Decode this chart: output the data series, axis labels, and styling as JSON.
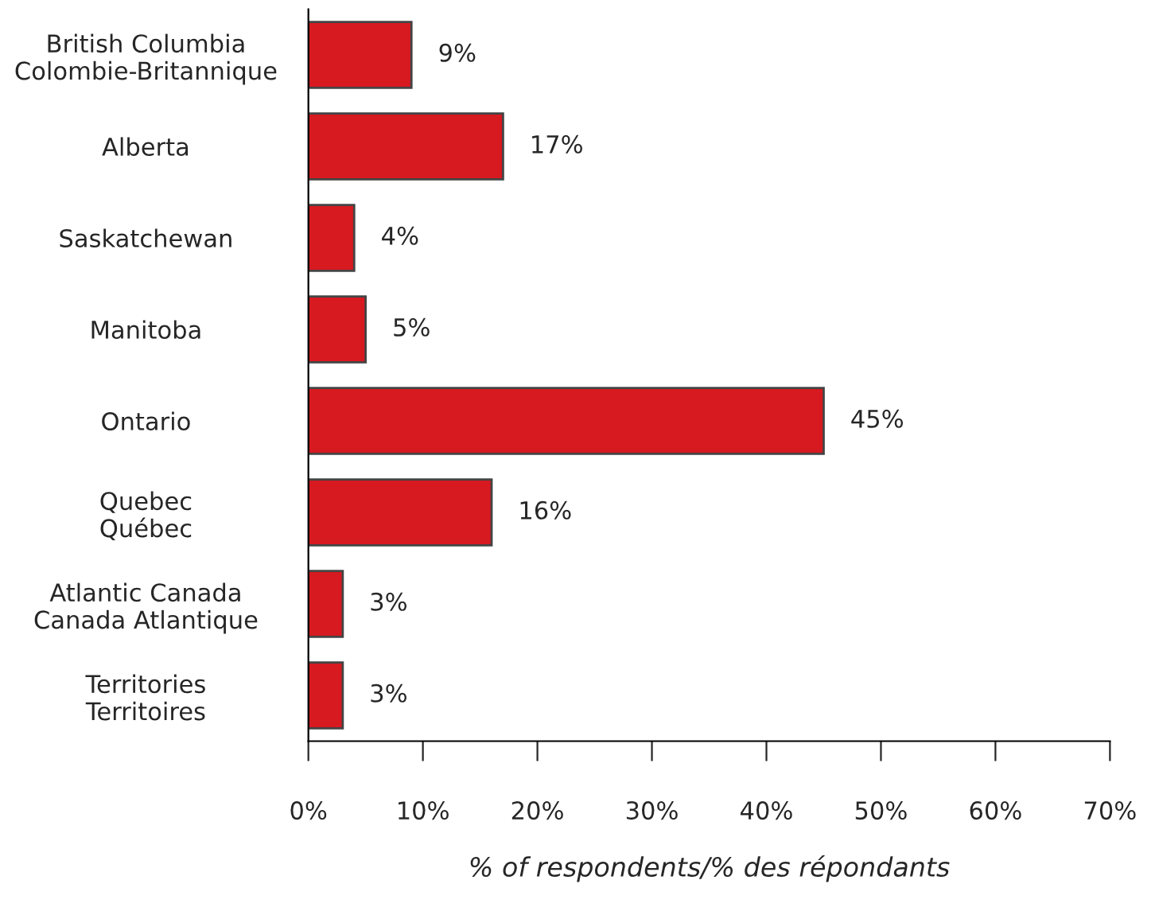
{
  "chart_data": {
    "type": "bar",
    "orientation": "horizontal",
    "xlabel": "% of respondents/% des répondants",
    "categories": [
      "British Columbia\nColombie-Britannique",
      "Alberta",
      "Saskatchewan",
      "Manitoba",
      "Ontario",
      "Quebec\nQuébec",
      "Atlantic Canada\nCanada Atlantique",
      "Territories\nTerritoires"
    ],
    "values": [
      9,
      17,
      4,
      5,
      45,
      16,
      3,
      3
    ],
    "value_labels": [
      "9%",
      "17%",
      "4%",
      "5%",
      "45%",
      "16%",
      "3%",
      "3%"
    ],
    "color": "#d71920",
    "xlim": [
      0,
      70
    ],
    "xticks": [
      {
        "value": 0,
        "label": "0%"
      },
      {
        "value": 10,
        "label": "10%"
      },
      {
        "value": 20,
        "label": "20%"
      },
      {
        "value": 30,
        "label": "30%"
      },
      {
        "value": 40,
        "label": "40%"
      },
      {
        "value": 50,
        "label": "50%"
      },
      {
        "value": 60,
        "label": "60%"
      },
      {
        "value": 70,
        "label": "70%"
      }
    ],
    "grid": false,
    "legend": false
  }
}
